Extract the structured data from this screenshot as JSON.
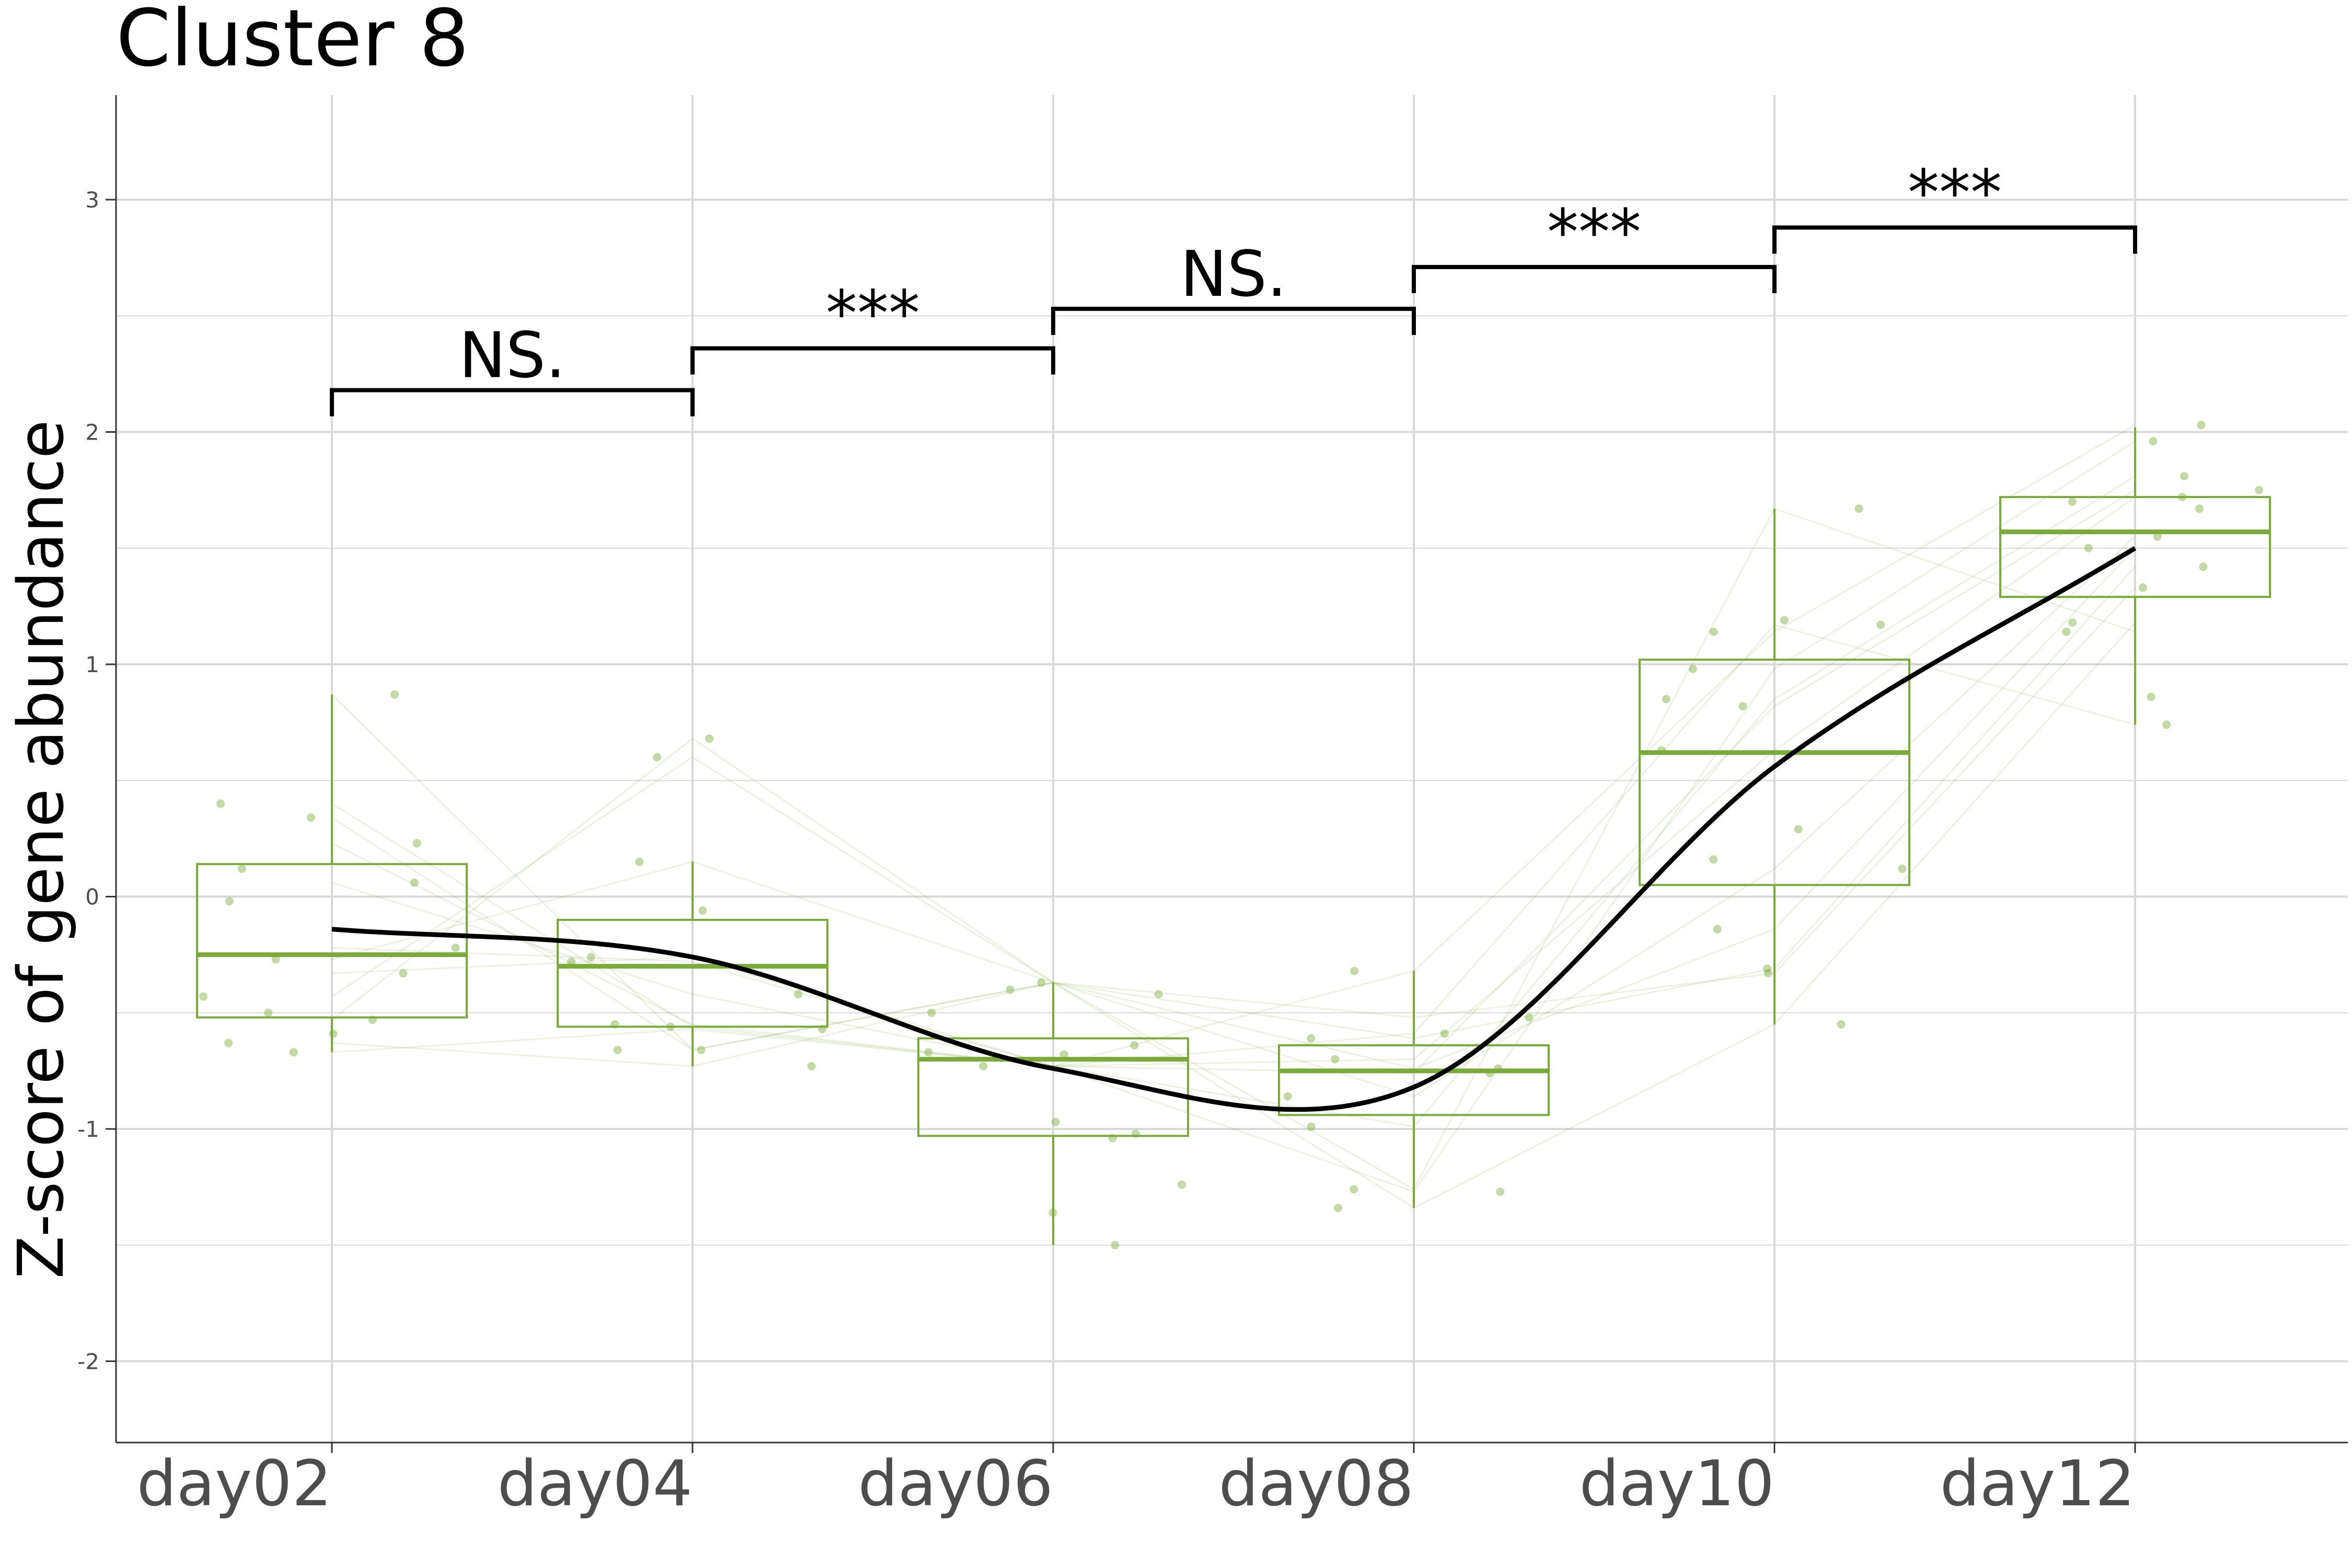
{
  "chart_data": {
    "type": "box",
    "title": "Cluster 8",
    "xlabel": "",
    "ylabel": "Z-score of gene abundance",
    "categories": [
      "day02",
      "day04",
      "day06",
      "day08",
      "day10",
      "day12"
    ],
    "yticks": [
      -2,
      -1,
      0,
      1,
      2,
      3
    ],
    "ylim": [
      -2.35,
      3.45
    ],
    "grid": true,
    "colors": {
      "box": "#7aab3a",
      "points": "#7aab3a",
      "trend": "#000000",
      "bracket": "#000000",
      "grid": "#d9d9d9"
    },
    "boxes": [
      {
        "category": "day02",
        "whisker_low": -0.67,
        "q1": -0.52,
        "median": -0.25,
        "q3": 0.14,
        "whisker_high": 0.87
      },
      {
        "category": "day04",
        "whisker_low": -0.73,
        "q1": -0.56,
        "median": -0.3,
        "q3": -0.1,
        "whisker_high": 0.15
      },
      {
        "category": "day06",
        "whisker_low": -1.5,
        "q1": -1.03,
        "median": -0.7,
        "q3": -0.61,
        "whisker_high": -0.37
      },
      {
        "category": "day08",
        "whisker_low": -1.34,
        "q1": -0.94,
        "median": -0.75,
        "q3": -0.64,
        "whisker_high": -0.32
      },
      {
        "category": "day10",
        "whisker_low": -0.55,
        "q1": 0.05,
        "median": 0.62,
        "q3": 1.02,
        "whisker_high": 1.67
      },
      {
        "category": "day12",
        "whisker_low": 0.74,
        "q1": 1.29,
        "median": 1.57,
        "q3": 1.72,
        "whisker_high": 2.02
      }
    ],
    "points": [
      {
        "category": "day02",
        "values": [
          0.87,
          0.4,
          0.34,
          0.23,
          0.12,
          0.06,
          -0.02,
          -0.22,
          -0.27,
          -0.33,
          -0.43,
          -0.5,
          -0.53,
          -0.59,
          -0.63,
          -0.67
        ]
      },
      {
        "category": "day04",
        "values": [
          0.68,
          0.6,
          0.15,
          -0.06,
          -0.26,
          -0.28,
          -0.42,
          -0.55,
          -0.56,
          -0.57,
          -0.66,
          -0.66,
          -0.73
        ]
      },
      {
        "category": "day06",
        "values": [
          -0.37,
          -0.4,
          -0.42,
          -0.5,
          -0.64,
          -0.67,
          -0.68,
          -0.73,
          -0.97,
          -1.02,
          -1.04,
          -1.24,
          -1.36,
          -1.5
        ]
      },
      {
        "category": "day08",
        "values": [
          -0.32,
          -0.52,
          -0.59,
          -0.61,
          -0.7,
          -0.74,
          -0.76,
          -0.86,
          -0.99,
          -1.26,
          -1.27,
          -1.34
        ]
      },
      {
        "category": "day10",
        "values": [
          1.67,
          1.19,
          1.17,
          1.14,
          0.98,
          0.85,
          0.82,
          0.63,
          0.29,
          0.16,
          0.12,
          -0.14,
          -0.31,
          -0.33,
          -0.55
        ]
      },
      {
        "category": "day12",
        "values": [
          2.03,
          1.96,
          1.81,
          1.75,
          1.72,
          1.7,
          1.67,
          1.55,
          1.5,
          1.42,
          1.33,
          1.18,
          1.14,
          0.86,
          0.74
        ]
      }
    ],
    "trend": {
      "type": "smooth",
      "x": [
        "day02",
        "day04",
        "day06",
        "day08",
        "day10",
        "day12"
      ],
      "values": [
        -0.14,
        -0.26,
        -0.74,
        -0.82,
        0.56,
        1.5
      ]
    },
    "significance": [
      {
        "from": "day02",
        "to": "day04",
        "label": "NS.",
        "y": 2.18
      },
      {
        "from": "day04",
        "to": "day06",
        "label": "***",
        "y": 2.36
      },
      {
        "from": "day06",
        "to": "day08",
        "label": "NS.",
        "y": 2.53
      },
      {
        "from": "day08",
        "to": "day10",
        "label": "***",
        "y": 2.71
      },
      {
        "from": "day10",
        "to": "day12",
        "label": "***",
        "y": 2.88
      }
    ]
  }
}
